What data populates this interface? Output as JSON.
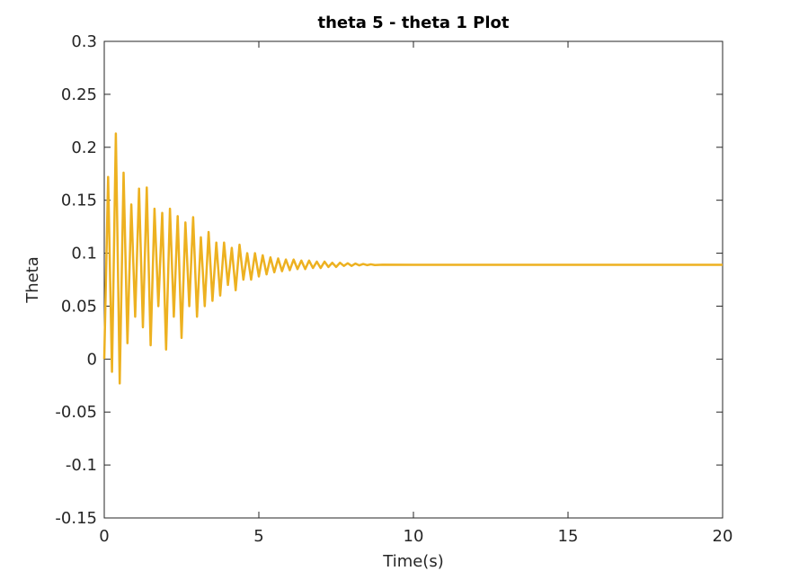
{
  "chart_data": {
    "type": "line",
    "title": "theta 5 - theta 1 Plot",
    "x_label": "Time(s)",
    "y_label": "Theta",
    "xlim": [
      0,
      20
    ],
    "ylim": [
      -0.15,
      0.3
    ],
    "xticks": [
      0,
      5,
      10,
      15,
      20
    ],
    "yticks": [
      -0.15,
      -0.1,
      -0.05,
      0,
      0.05,
      0.1,
      0.15,
      0.2,
      0.25,
      0.3
    ],
    "grid": false,
    "series": [
      {
        "name": "theta 5 - theta 1",
        "color": "#EDB120",
        "x": [
          0,
          0.125,
          0.25,
          0.375,
          0.5,
          0.625,
          0.75,
          0.875,
          1.0,
          1.125,
          1.25,
          1.375,
          1.5,
          1.625,
          1.75,
          1.875,
          2.0,
          2.125,
          2.25,
          2.375,
          2.5,
          2.625,
          2.75,
          2.875,
          3.0,
          3.125,
          3.25,
          3.375,
          3.5,
          3.625,
          3.75,
          3.875,
          4.0,
          4.125,
          4.25,
          4.375,
          4.5,
          4.625,
          4.75,
          4.875,
          5.0,
          5.125,
          5.25,
          5.375,
          5.5,
          5.625,
          5.75,
          5.875,
          6.0,
          6.125,
          6.25,
          6.375,
          6.5,
          6.625,
          6.75,
          6.875,
          7.0,
          7.125,
          7.25,
          7.375,
          7.5,
          7.625,
          7.75,
          7.875,
          8.0,
          8.125,
          8.25,
          8.375,
          8.5,
          8.625,
          8.75,
          9.0,
          10,
          12,
          14,
          16,
          18,
          20
        ],
        "values": [
          0,
          0.172,
          -0.012,
          0.213,
          -0.023,
          0.176,
          0.015,
          0.146,
          0.04,
          0.161,
          0.03,
          0.162,
          0.013,
          0.142,
          0.05,
          0.138,
          0.009,
          0.142,
          0.04,
          0.135,
          0.02,
          0.129,
          0.05,
          0.134,
          0.04,
          0.115,
          0.05,
          0.12,
          0.055,
          0.11,
          0.06,
          0.11,
          0.07,
          0.105,
          0.065,
          0.108,
          0.075,
          0.1,
          0.075,
          0.1,
          0.078,
          0.098,
          0.08,
          0.096,
          0.082,
          0.095,
          0.083,
          0.094,
          0.084,
          0.094,
          0.085,
          0.093,
          0.085,
          0.093,
          0.086,
          0.092,
          0.086,
          0.092,
          0.087,
          0.091,
          0.087,
          0.091,
          0.088,
          0.0905,
          0.088,
          0.0902,
          0.0885,
          0.0898,
          0.0887,
          0.0895,
          0.0888,
          0.0891,
          0.089,
          0.089,
          0.089,
          0.089,
          0.089,
          0.089
        ]
      }
    ]
  }
}
